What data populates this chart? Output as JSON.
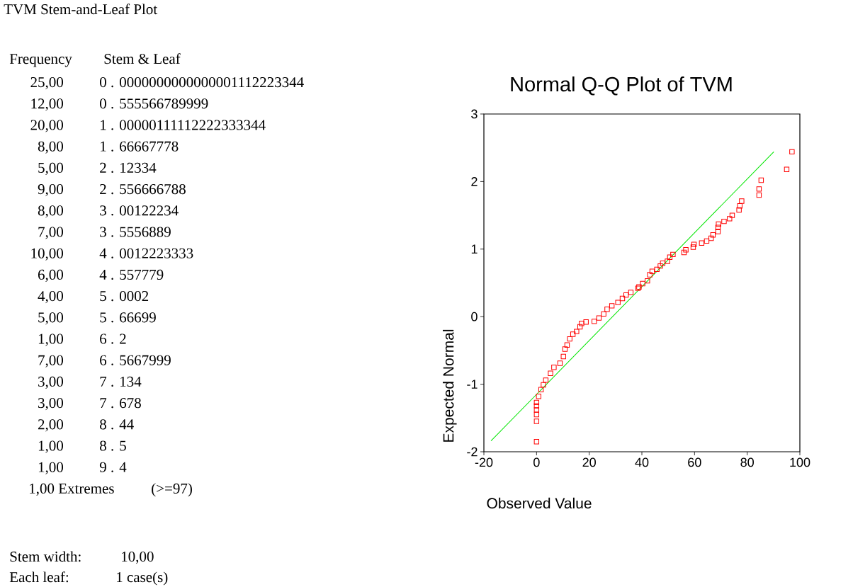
{
  "chart_data": [
    {
      "type": "other",
      "title": "TVM Stem-and-Leaf Plot",
      "annotations": [
        "Frequency",
        "Stem &  Leaf",
        "25,00",
        "0 .  0000000000000001112223344",
        "12,00",
        "0 .  555566789999",
        "20,00",
        "1 .  00000111112222333344",
        "8,00",
        "1 .  66667778",
        "5,00",
        "2 .  12334",
        "9,00",
        "2 .  556666788",
        "8,00",
        "3 .  00122234",
        "7,00",
        "3 .  5556889",
        "10,00",
        "4 .  0012223333",
        "6,00",
        "4 .  557779",
        "4,00",
        "5 .  0002",
        "5,00",
        "5 .  66699",
        "1,00",
        "6 .  2",
        "7,00",
        "6 .  5667999",
        "3,00",
        "7 .  134",
        "3,00",
        "7 .  678",
        "2,00",
        "8 .  44",
        "1,00",
        "8 .  5",
        "1,00",
        "9 .  4",
        "1,00 Extremes",
        "(>=97)",
        "Stem width:",
        "10,00",
        "Each leaf:",
        "1 case(s)"
      ]
    },
    {
      "type": "scatter",
      "title": "Normal Q-Q Plot of TVM",
      "xlabel": "Observed Value",
      "ylabel": "Expected Normal",
      "xlim": [
        -20,
        100
      ],
      "ylim": [
        -2,
        3
      ],
      "xticks": [
        -20,
        0,
        20,
        40,
        60,
        80,
        100
      ],
      "yticks": [
        -2,
        -1,
        0,
        1,
        2,
        3
      ],
      "series": [
        {
          "type": "scatter",
          "color": "#ff0000",
          "marker": "square",
          "x": [
            0,
            0,
            0,
            0,
            0,
            0,
            0.8,
            1.7,
            2.6,
            3.5,
            5.3,
            6.6,
            8.9,
            10.2,
            10.8,
            11.6,
            12.6,
            13.8,
            15.2,
            16.5,
            17.1,
            18.8,
            21.9,
            23.7,
            25.5,
            26.8,
            28.6,
            30.9,
            32.6,
            34,
            35.8,
            38.5,
            38.9,
            40.3,
            42.1,
            43,
            43.9,
            45.7,
            47,
            47.9,
            49.7,
            50.6,
            51.8,
            56,
            56.7,
            59.5,
            59.8,
            62.7,
            64.6,
            66.3,
            67,
            68.9,
            68.9,
            69.1,
            71.2,
            73.3,
            74.3,
            76.9,
            77.2,
            77.9,
            84.5,
            84.5,
            85.3,
            95,
            97
          ],
          "values": [
            -1.85,
            -1.55,
            -1.45,
            -1.38,
            -1.32,
            -1.27,
            -1.18,
            -1.08,
            -1.01,
            -0.94,
            -0.84,
            -0.75,
            -0.69,
            -0.59,
            -0.48,
            -0.42,
            -0.33,
            -0.26,
            -0.22,
            -0.15,
            -0.1,
            -0.08,
            -0.07,
            -0.02,
            0.04,
            0.11,
            0.16,
            0.21,
            0.27,
            0.32,
            0.36,
            0.42,
            0.44,
            0.49,
            0.53,
            0.62,
            0.67,
            0.7,
            0.75,
            0.79,
            0.82,
            0.88,
            0.92,
            0.95,
            0.99,
            1.03,
            1.07,
            1.09,
            1.12,
            1.16,
            1.21,
            1.26,
            1.32,
            1.37,
            1.41,
            1.45,
            1.5,
            1.58,
            1.64,
            1.71,
            1.8,
            1.89,
            2.02,
            2.18,
            2.44
          ]
        },
        {
          "type": "line",
          "color": "#00e600",
          "marker": "none",
          "x": [
            -17.3,
            90.1
          ],
          "values": [
            -1.84,
            2.44
          ]
        }
      ]
    }
  ]
}
